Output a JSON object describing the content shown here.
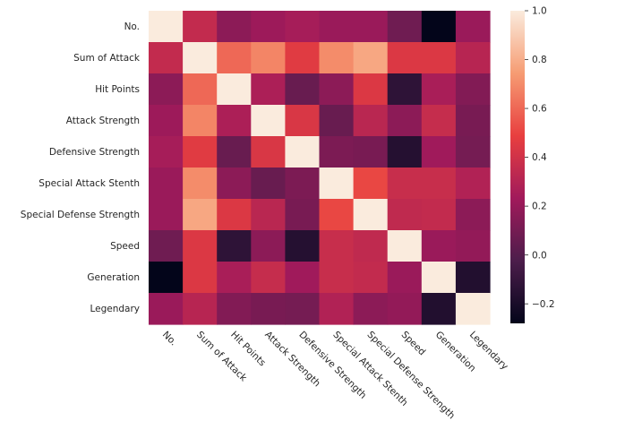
{
  "chart_data": {
    "type": "heatmap",
    "title": "",
    "row_labels": [
      "No.",
      "Sum of Attack",
      "Hit Points",
      "Attack Strength",
      "Defensive Strength",
      "Special Attack Stenth",
      "Special Defense Strength",
      "Speed",
      "Generation",
      "Legendary"
    ],
    "col_labels": [
      "No.",
      "Sum of Attack",
      "Hit Points",
      "Attack Strength",
      "Defensive Strength",
      "Special Attack Stenth",
      "Special Defense Strength",
      "Speed",
      "Generation",
      "Legendary"
    ],
    "values": [
      [
        1.0,
        0.35,
        0.17,
        0.22,
        0.25,
        0.21,
        0.21,
        0.08,
        -0.28,
        0.21
      ],
      [
        0.35,
        1.0,
        0.6,
        0.68,
        0.46,
        0.7,
        0.78,
        0.44,
        0.44,
        0.31
      ],
      [
        0.17,
        0.6,
        1.0,
        0.27,
        0.06,
        0.17,
        0.44,
        -0.13,
        0.26,
        0.14
      ],
      [
        0.22,
        0.68,
        0.27,
        1.0,
        0.43,
        0.06,
        0.32,
        0.17,
        0.36,
        0.11
      ],
      [
        0.25,
        0.46,
        0.06,
        0.43,
        1.0,
        0.12,
        0.11,
        -0.16,
        0.23,
        0.1
      ],
      [
        0.21,
        0.7,
        0.17,
        0.06,
        0.12,
        1.0,
        0.51,
        0.37,
        0.37,
        0.29
      ],
      [
        0.21,
        0.78,
        0.44,
        0.32,
        0.11,
        0.51,
        1.0,
        0.34,
        0.35,
        0.17
      ],
      [
        0.08,
        0.44,
        -0.13,
        0.17,
        -0.16,
        0.37,
        0.34,
        1.0,
        0.21,
        0.19
      ],
      [
        -0.28,
        0.44,
        0.26,
        0.36,
        0.23,
        0.37,
        0.35,
        0.21,
        1.0,
        -0.17
      ],
      [
        0.21,
        0.31,
        0.14,
        0.11,
        0.1,
        0.29,
        0.17,
        0.19,
        -0.17,
        1.0
      ]
    ],
    "vmin": -0.28,
    "vmax": 1.0,
    "colorbar_ticks": [
      1.0,
      0.8,
      0.6,
      0.4,
      0.2,
      0.0,
      -0.2
    ],
    "colorbar_tick_labels": [
      "1.0",
      "0.8",
      "0.6",
      "0.4",
      "0.2",
      "0.0",
      "−0.2"
    ],
    "colormap": "rocket",
    "colormap_stops": [
      "#03051a",
      "#4c1d4b",
      "#a11a5b",
      "#e83f3f",
      "#f69c73",
      "#faebdd"
    ]
  }
}
